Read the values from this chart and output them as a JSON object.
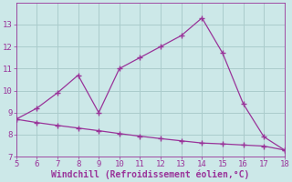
{
  "line1_x": [
    5,
    6,
    7,
    8,
    9,
    10,
    11,
    12,
    13,
    14,
    15,
    16,
    17,
    18
  ],
  "line1_y": [
    8.7,
    9.2,
    9.9,
    10.7,
    9.0,
    11.0,
    11.5,
    12.0,
    12.5,
    13.3,
    11.7,
    9.4,
    7.9,
    7.3
  ],
  "line2_x": [
    5,
    6,
    7,
    8,
    9,
    10,
    11,
    12,
    13,
    14,
    15,
    16,
    17,
    18
  ],
  "line2_y": [
    8.7,
    8.55,
    8.42,
    8.3,
    8.18,
    8.05,
    7.93,
    7.82,
    7.72,
    7.62,
    7.58,
    7.53,
    7.48,
    7.3
  ],
  "line_color": "#993399",
  "bg_color": "#cce8e8",
  "grid_color": "#aacccc",
  "xlabel": "Windchill (Refroidissement éolien,°C)",
  "xlim": [
    5,
    18
  ],
  "ylim": [
    7,
    14
  ],
  "xticks": [
    5,
    6,
    7,
    8,
    9,
    10,
    11,
    12,
    13,
    14,
    15,
    16,
    17,
    18
  ],
  "yticks": [
    7,
    8,
    9,
    10,
    11,
    12,
    13
  ],
  "tick_color": "#993399",
  "label_color": "#993399",
  "font_size": 6.5,
  "xlabel_font_size": 7.0,
  "marker": "+",
  "marker_size": 4,
  "linewidth": 0.9
}
